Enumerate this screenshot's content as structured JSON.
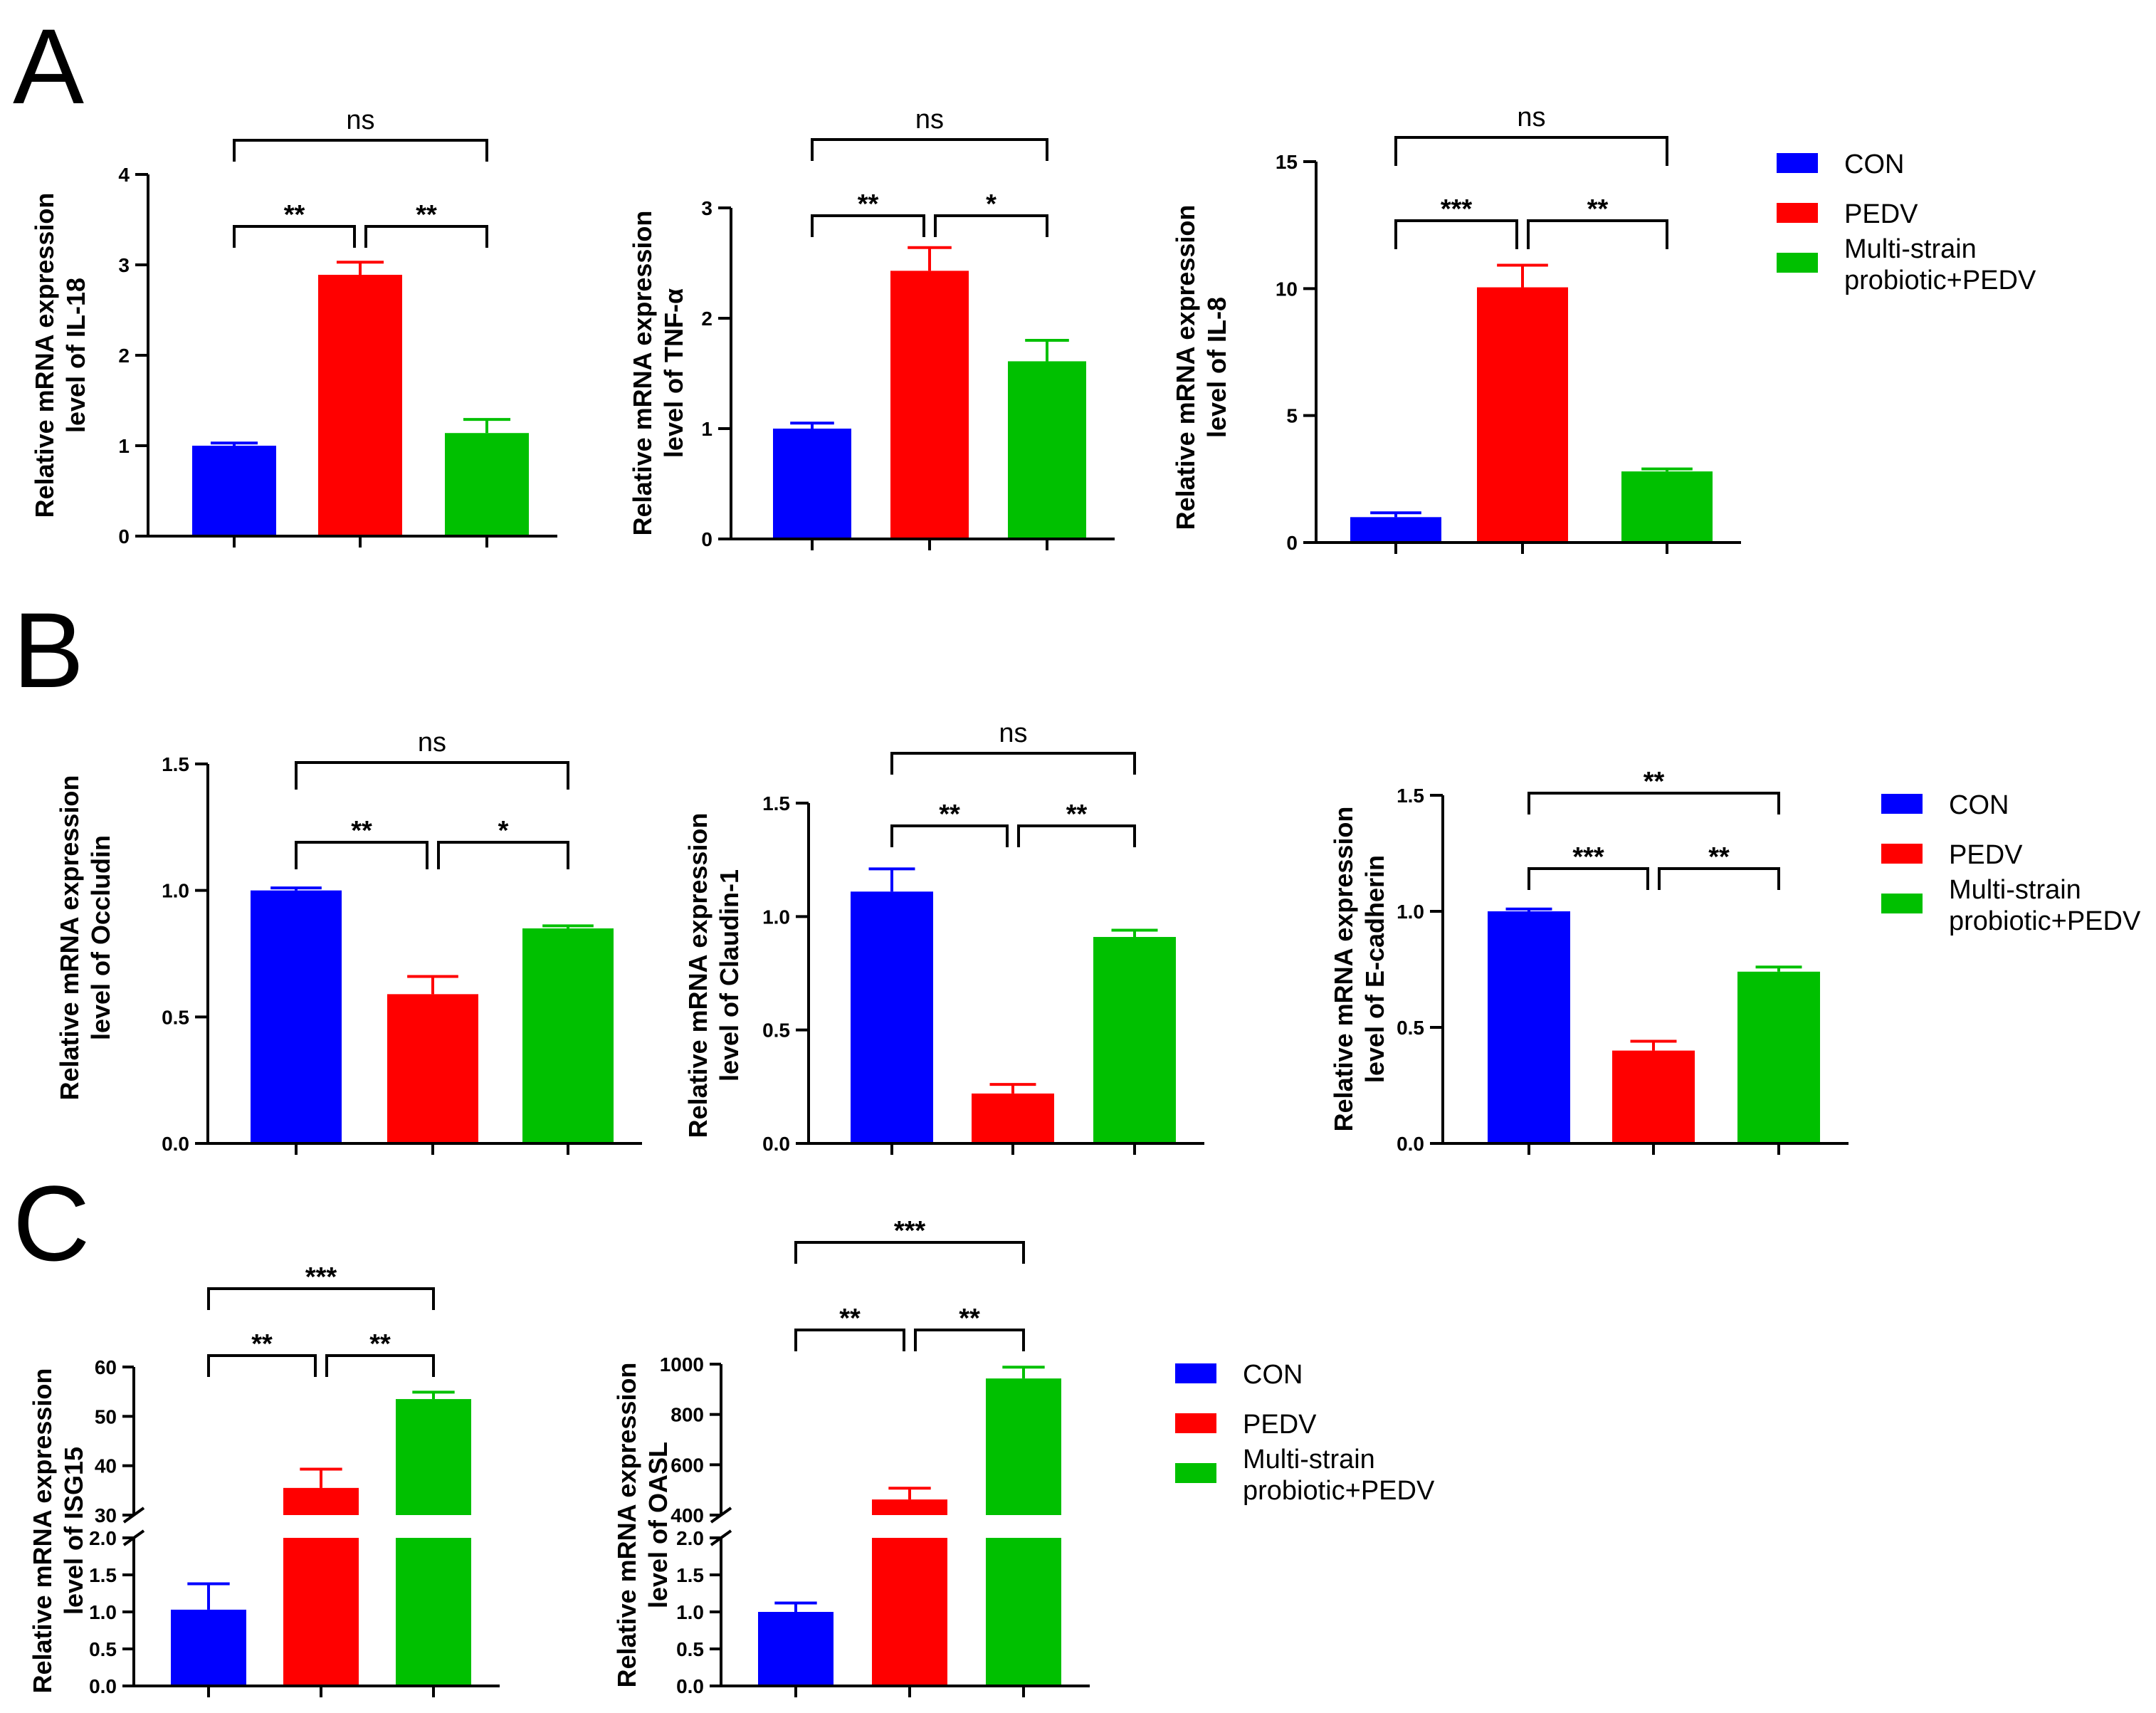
{
  "colors": {
    "CON": "#0000ff",
    "PEDV": "#ff0000",
    "Multi": "#00c000"
  },
  "legend": [
    "CON",
    "PEDV",
    "Multi-strain probiotic+PEDV"
  ],
  "panel_letters": [
    "A",
    "B",
    "C"
  ],
  "chart_data": [
    {
      "type": "bar",
      "panel": "A",
      "ylabel": "Relative mRNA expression level of IL-18",
      "categories": [
        "CON",
        "PEDV",
        "Multi-strain probiotic+PEDV"
      ],
      "values": [
        1.0,
        2.89,
        1.14
      ],
      "errors": [
        0.03,
        0.14,
        0.15
      ],
      "ylim": [
        0,
        4
      ],
      "yticks": [
        0,
        1,
        2,
        3,
        4
      ],
      "ytick_labels": [
        "0",
        "1",
        "2",
        "3",
        "4"
      ],
      "comparisons": [
        {
          "from": 0,
          "to": 1,
          "label": "**"
        },
        {
          "from": 1,
          "to": 2,
          "label": "**"
        },
        {
          "from": 0,
          "to": 2,
          "label": "ns"
        }
      ]
    },
    {
      "type": "bar",
      "panel": "A",
      "ylabel": "Relative mRNA expression level of TNF-α",
      "categories": [
        "CON",
        "PEDV",
        "Multi-strain probiotic+PEDV"
      ],
      "values": [
        1.0,
        2.43,
        1.61
      ],
      "errors": [
        0.05,
        0.21,
        0.19
      ],
      "ylim": [
        0,
        3
      ],
      "yticks": [
        0,
        1,
        2,
        3
      ],
      "ytick_labels": [
        "0",
        "1",
        "2",
        "3"
      ],
      "comparisons": [
        {
          "from": 0,
          "to": 1,
          "label": "**"
        },
        {
          "from": 1,
          "to": 2,
          "label": "*"
        },
        {
          "from": 0,
          "to": 2,
          "label": "ns"
        }
      ]
    },
    {
      "type": "bar",
      "panel": "A",
      "ylabel": "Relative mRNA expression level of IL-8",
      "categories": [
        "CON",
        "PEDV",
        "Multi-strain probiotic+PEDV"
      ],
      "values": [
        1.0,
        10.05,
        2.8
      ],
      "errors": [
        0.17,
        0.87,
        0.1
      ],
      "ylim": [
        0,
        15
      ],
      "yticks": [
        0,
        5,
        10,
        15
      ],
      "ytick_labels": [
        "0",
        "5",
        "10",
        "15"
      ],
      "comparisons": [
        {
          "from": 0,
          "to": 1,
          "label": "***"
        },
        {
          "from": 1,
          "to": 2,
          "label": "**"
        },
        {
          "from": 0,
          "to": 2,
          "label": "ns"
        }
      ]
    },
    {
      "type": "bar",
      "panel": "B",
      "ylabel": "Relative mRNA expression level of Occludin",
      "categories": [
        "CON",
        "PEDV",
        "Multi-strain probiotic+PEDV"
      ],
      "values": [
        1.0,
        0.59,
        0.85
      ],
      "errors": [
        0.01,
        0.07,
        0.01
      ],
      "ylim": [
        0,
        1.5
      ],
      "yticks": [
        0,
        0.5,
        1.0,
        1.5
      ],
      "ytick_labels": [
        "0.0",
        "0.5",
        "1.0",
        "1.5"
      ],
      "comparisons": [
        {
          "from": 0,
          "to": 1,
          "label": "**"
        },
        {
          "from": 1,
          "to": 2,
          "label": "*"
        },
        {
          "from": 0,
          "to": 2,
          "label": "ns"
        }
      ]
    },
    {
      "type": "bar",
      "panel": "B",
      "ylabel": "Relative mRNA expression level of Claudin-1",
      "categories": [
        "CON",
        "PEDV",
        "Multi-strain probiotic+PEDV"
      ],
      "values": [
        1.11,
        0.22,
        0.91
      ],
      "errors": [
        0.1,
        0.04,
        0.03
      ],
      "ylim": [
        0,
        1.5
      ],
      "yticks": [
        0,
        0.5,
        1.0,
        1.5
      ],
      "ytick_labels": [
        "0.0",
        "0.5",
        "1.0",
        "1.5"
      ],
      "comparisons": [
        {
          "from": 0,
          "to": 1,
          "label": "**"
        },
        {
          "from": 1,
          "to": 2,
          "label": "**"
        },
        {
          "from": 0,
          "to": 2,
          "label": "ns"
        }
      ]
    },
    {
      "type": "bar",
      "panel": "B",
      "ylabel": "Relative mRNA expression level of E-cadherin",
      "categories": [
        "CON",
        "PEDV",
        "Multi-strain probiotic+PEDV"
      ],
      "values": [
        1.0,
        0.4,
        0.74
      ],
      "errors": [
        0.01,
        0.04,
        0.02
      ],
      "ylim": [
        0,
        1.5
      ],
      "yticks": [
        0,
        0.5,
        1.0,
        1.5
      ],
      "ytick_labels": [
        "0.0",
        "0.5",
        "1.0",
        "1.5"
      ],
      "comparisons": [
        {
          "from": 0,
          "to": 1,
          "label": "***"
        },
        {
          "from": 1,
          "to": 2,
          "label": "**"
        },
        {
          "from": 0,
          "to": 2,
          "label": "**"
        }
      ]
    },
    {
      "type": "bar",
      "panel": "C",
      "ylabel": "Relative mRNA expression level of ISG15",
      "categories": [
        "CON",
        "PEDV",
        "Multi-strain probiotic+PEDV"
      ],
      "values": [
        1.03,
        35.5,
        53.5
      ],
      "errors": [
        0.35,
        3.8,
        1.4
      ],
      "broken_axis": {
        "lower": [
          0,
          2.0
        ],
        "upper": [
          30,
          60
        ]
      },
      "yticks_lower": [
        0,
        0.5,
        1.0,
        1.5,
        2.0
      ],
      "ytick_labels_lower": [
        "0.0",
        "0.5",
        "1.0",
        "1.5",
        "2.0"
      ],
      "yticks_upper": [
        30,
        40,
        50,
        60
      ],
      "ytick_labels_upper": [
        "30",
        "40",
        "50",
        "60"
      ],
      "comparisons": [
        {
          "from": 0,
          "to": 1,
          "label": "**"
        },
        {
          "from": 1,
          "to": 2,
          "label": "**"
        },
        {
          "from": 0,
          "to": 2,
          "label": "***"
        }
      ]
    },
    {
      "type": "bar",
      "panel": "C",
      "ylabel": "Relative mRNA expression level of OASL",
      "categories": [
        "CON",
        "PEDV",
        "Multi-strain probiotic+PEDV"
      ],
      "values": [
        1.0,
        462,
        943
      ],
      "errors": [
        0.12,
        45,
        45
      ],
      "broken_axis": {
        "lower": [
          0,
          2.0
        ],
        "upper": [
          400,
          1000
        ]
      },
      "yticks_lower": [
        0,
        0.5,
        1.0,
        1.5,
        2.0
      ],
      "ytick_labels_lower": [
        "0.0",
        "0.5",
        "1.0",
        "1.5",
        "2.0"
      ],
      "yticks_upper": [
        400,
        600,
        800,
        1000
      ],
      "ytick_labels_upper": [
        "400",
        "600",
        "800",
        "1000"
      ],
      "comparisons": [
        {
          "from": 0,
          "to": 1,
          "label": "**"
        },
        {
          "from": 1,
          "to": 2,
          "label": "**"
        },
        {
          "from": 0,
          "to": 2,
          "label": "***"
        }
      ]
    }
  ]
}
